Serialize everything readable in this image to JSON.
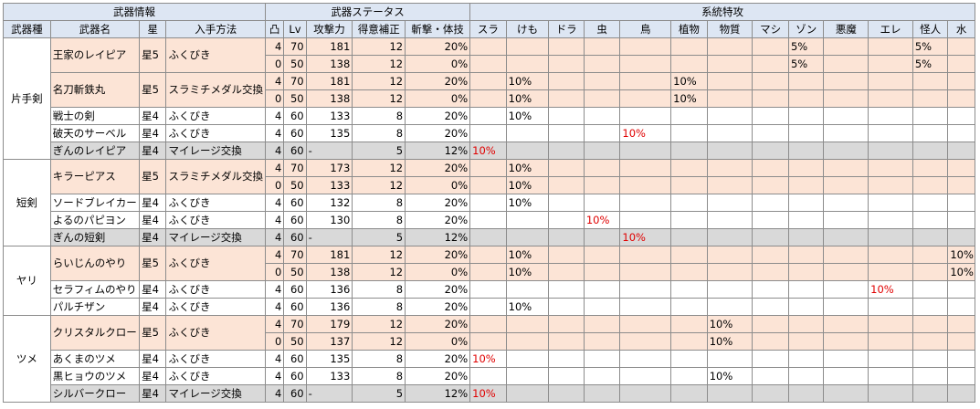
{
  "headers": {
    "group_info": "武器情報",
    "group_stats": "武器ステータス",
    "group_traits": "系統特攻",
    "columns": [
      "武器種",
      "武器名",
      "星",
      "入手方法",
      "凸",
      "Lv",
      "攻撃力",
      "得意補正",
      "斬撃・体技",
      "スラ",
      "けも",
      "ドラ",
      "虫",
      "鳥",
      "植物",
      "物質",
      "マシ",
      "ゾン",
      "悪魔",
      "エレ",
      "怪人",
      "水"
    ]
  },
  "categories": [
    {
      "name": "片手剣",
      "weapons": [
        {
          "name": "王家のレイピア",
          "star": "星5",
          "method": "ふくびき",
          "style": "pink",
          "rows": [
            {
              "totsu": "4",
              "lv": "70",
              "atk": "181",
              "tokui": "12",
              "zan": "20%",
              "traits": {
                "zon": "5%",
                "kaijin": "5%"
              }
            },
            {
              "totsu": "0",
              "lv": "50",
              "atk": "138",
              "tokui": "12",
              "zan": "0%",
              "traits": {
                "zon": "5%",
                "kaijin": "5%"
              }
            }
          ]
        },
        {
          "name": "名刀斬鉄丸",
          "star": "星5",
          "method": "スラミチメダル交換",
          "style": "pink",
          "rows": [
            {
              "totsu": "4",
              "lv": "70",
              "atk": "181",
              "tokui": "12",
              "zan": "20%",
              "traits": {
                "kemo": "10%",
                "shoku": "10%"
              }
            },
            {
              "totsu": "0",
              "lv": "50",
              "atk": "138",
              "tokui": "12",
              "zan": "0%",
              "traits": {
                "kemo": "10%",
                "shoku": "10%"
              }
            }
          ]
        },
        {
          "name": "戦士の剣",
          "star": "星4",
          "method": "ふくびき",
          "style": "white",
          "rows": [
            {
              "totsu": "4",
              "lv": "60",
              "atk": "133",
              "tokui": "8",
              "zan": "20%",
              "traits": {
                "kemo": "10%"
              }
            }
          ]
        },
        {
          "name": "破天のサーベル",
          "star": "星4",
          "method": "ふくびき",
          "style": "white",
          "rows": [
            {
              "totsu": "4",
              "lv": "60",
              "atk": "135",
              "tokui": "8",
              "zan": "20%",
              "traits": {
                "tori": "10%"
              },
              "red": [
                "tori"
              ]
            }
          ]
        },
        {
          "name": "ぎんのレイピア",
          "star": "星4",
          "method": "マイレージ交換",
          "style": "gray",
          "rows": [
            {
              "totsu": "4",
              "lv": "60",
              "atk": "-",
              "tokui": "5",
              "zan": "12%",
              "traits": {
                "sura": "10%"
              },
              "red": [
                "sura"
              ]
            }
          ]
        }
      ]
    },
    {
      "name": "短剣",
      "weapons": [
        {
          "name": "キラーピアス",
          "star": "星5",
          "method": "スラミチメダル交換",
          "style": "pink",
          "rows": [
            {
              "totsu": "4",
              "lv": "70",
              "atk": "173",
              "tokui": "12",
              "zan": "20%",
              "traits": {
                "kemo": "10%"
              }
            },
            {
              "totsu": "0",
              "lv": "50",
              "atk": "133",
              "tokui": "12",
              "zan": "0%",
              "traits": {
                "kemo": "10%"
              }
            }
          ]
        },
        {
          "name": "ソードブレイカー",
          "star": "星4",
          "method": "ふくびき",
          "style": "white",
          "rows": [
            {
              "totsu": "4",
              "lv": "60",
              "atk": "132",
              "tokui": "8",
              "zan": "20%",
              "traits": {
                "kemo": "10%"
              }
            }
          ]
        },
        {
          "name": "よるのパピヨン",
          "star": "星4",
          "method": "ふくびき",
          "style": "white",
          "rows": [
            {
              "totsu": "4",
              "lv": "60",
              "atk": "130",
              "tokui": "8",
              "zan": "20%",
              "traits": {
                "mushi": "10%"
              },
              "red": [
                "mushi"
              ]
            }
          ]
        },
        {
          "name": "ぎんの短剣",
          "star": "星4",
          "method": "マイレージ交換",
          "style": "gray",
          "rows": [
            {
              "totsu": "4",
              "lv": "60",
              "atk": "-",
              "tokui": "5",
              "zan": "12%",
              "traits": {
                "tori": "10%"
              },
              "red": [
                "tori"
              ]
            }
          ]
        }
      ]
    },
    {
      "name": "ヤリ",
      "weapons": [
        {
          "name": "らいじんのやり",
          "star": "星5",
          "method": "ふくびき",
          "style": "pink",
          "rows": [
            {
              "totsu": "4",
              "lv": "70",
              "atk": "181",
              "tokui": "12",
              "zan": "20%",
              "traits": {
                "kemo": "10%",
                "mizu": "10%"
              }
            },
            {
              "totsu": "0",
              "lv": "50",
              "atk": "138",
              "tokui": "12",
              "zan": "0%",
              "traits": {
                "kemo": "10%",
                "mizu": "10%"
              }
            }
          ]
        },
        {
          "name": "セラフィムのやり",
          "star": "星4",
          "method": "ふくびき",
          "style": "white",
          "rows": [
            {
              "totsu": "4",
              "lv": "60",
              "atk": "136",
              "tokui": "8",
              "zan": "20%",
              "traits": {
                "ere": "10%"
              },
              "red": [
                "ere"
              ]
            }
          ]
        },
        {
          "name": "パルチザン",
          "star": "星4",
          "method": "ふくびき",
          "style": "white",
          "rows": [
            {
              "totsu": "4",
              "lv": "60",
              "atk": "136",
              "tokui": "8",
              "zan": "20%",
              "traits": {
                "kemo": "10%"
              }
            }
          ]
        }
      ]
    },
    {
      "name": "ツメ",
      "weapons": [
        {
          "name": "クリスタルクロー",
          "star": "星5",
          "method": "ふくびき",
          "style": "pink",
          "rows": [
            {
              "totsu": "4",
              "lv": "70",
              "atk": "179",
              "tokui": "12",
              "zan": "20%",
              "traits": {
                "busshitsu": "10%"
              }
            },
            {
              "totsu": "0",
              "lv": "50",
              "atk": "137",
              "tokui": "12",
              "zan": "0%",
              "traits": {
                "busshitsu": "10%"
              }
            }
          ]
        },
        {
          "name": "あくまのツメ",
          "star": "星4",
          "method": "ふくびき",
          "style": "white",
          "rows": [
            {
              "totsu": "4",
              "lv": "60",
              "atk": "135",
              "tokui": "8",
              "zan": "20%",
              "traits": {
                "sura": "10%"
              },
              "red": [
                "sura"
              ]
            }
          ]
        },
        {
          "name": "黒ヒョウのツメ",
          "star": "星4",
          "method": "ふくびき",
          "style": "white",
          "rows": [
            {
              "totsu": "4",
              "lv": "60",
              "atk": "133",
              "tokui": "8",
              "zan": "20%",
              "traits": {
                "busshitsu": "10%"
              }
            }
          ]
        },
        {
          "name": "シルバークロー",
          "star": "星4",
          "method": "マイレージ交換",
          "style": "gray",
          "rows": [
            {
              "totsu": "4",
              "lv": "60",
              "atk": "-",
              "tokui": "5",
              "zan": "12%",
              "traits": {
                "sura": "10%"
              },
              "red": [
                "sura"
              ]
            }
          ]
        }
      ]
    }
  ],
  "trait_keys": [
    "sura",
    "kemo",
    "dora",
    "mushi",
    "tori",
    "shoku",
    "busshitsu",
    "mashi",
    "zon",
    "akuma",
    "ere",
    "kaijin",
    "mizu"
  ],
  "colors": {
    "header_bg": "#dde6f3",
    "pink_row": "#fce4d6",
    "gray_row": "#d9d9d9",
    "red_text": "#e00000",
    "border": "#8c8c8c"
  }
}
